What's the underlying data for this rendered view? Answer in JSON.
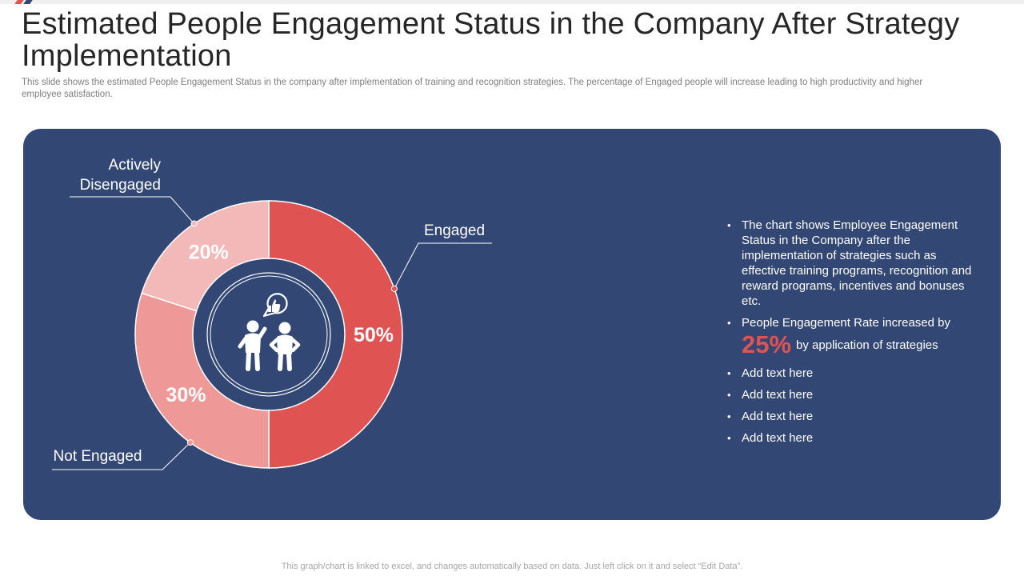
{
  "slide": {
    "title": "Estimated People Engagement Status in the Company After Strategy Implementation",
    "subtitle": "This slide shows the estimated People Engagement  Status in the company after implementation of training and recognition strategies. The  percentage of Engaged  people will increase leading to high productivity  and higher  employee  satisfaction.",
    "footer": "This graph/chart is linked to excel,  and changes automatically based on data. Just left click on it and select “Edit Data”."
  },
  "colors": {
    "panel_bg": "#324773",
    "engaged": "#e05353",
    "not_engaged": "#ee9898",
    "actively_disengaged": "#f3b8b8",
    "highlight": "#e05353",
    "accent_red": "#e05353",
    "accent_blue": "#324773"
  },
  "chart_data": {
    "type": "pie",
    "title": "",
    "center_icon": "people-engagement-icon",
    "slices": [
      {
        "label": "Engaged",
        "value": 50,
        "value_label": "50%"
      },
      {
        "label": "Not Engaged",
        "value": 30,
        "value_label": "30%"
      },
      {
        "label": "Actively Disengaged",
        "value": 20,
        "value_label": "20%"
      }
    ]
  },
  "bullets": {
    "item1": "The chart shows Employee Engagement Status in the Company after the implementation of strategies such as effective training programs, recognition and reward programs, incentives and bonuses etc.",
    "item2_prefix": "People Engagement Rate increased by",
    "item2_highlight": "25%",
    "item2_suffix": "by application of strategies",
    "item3": "Add text here",
    "item4": "Add text here",
    "item5": "Add text here",
    "item6": "Add text here"
  }
}
